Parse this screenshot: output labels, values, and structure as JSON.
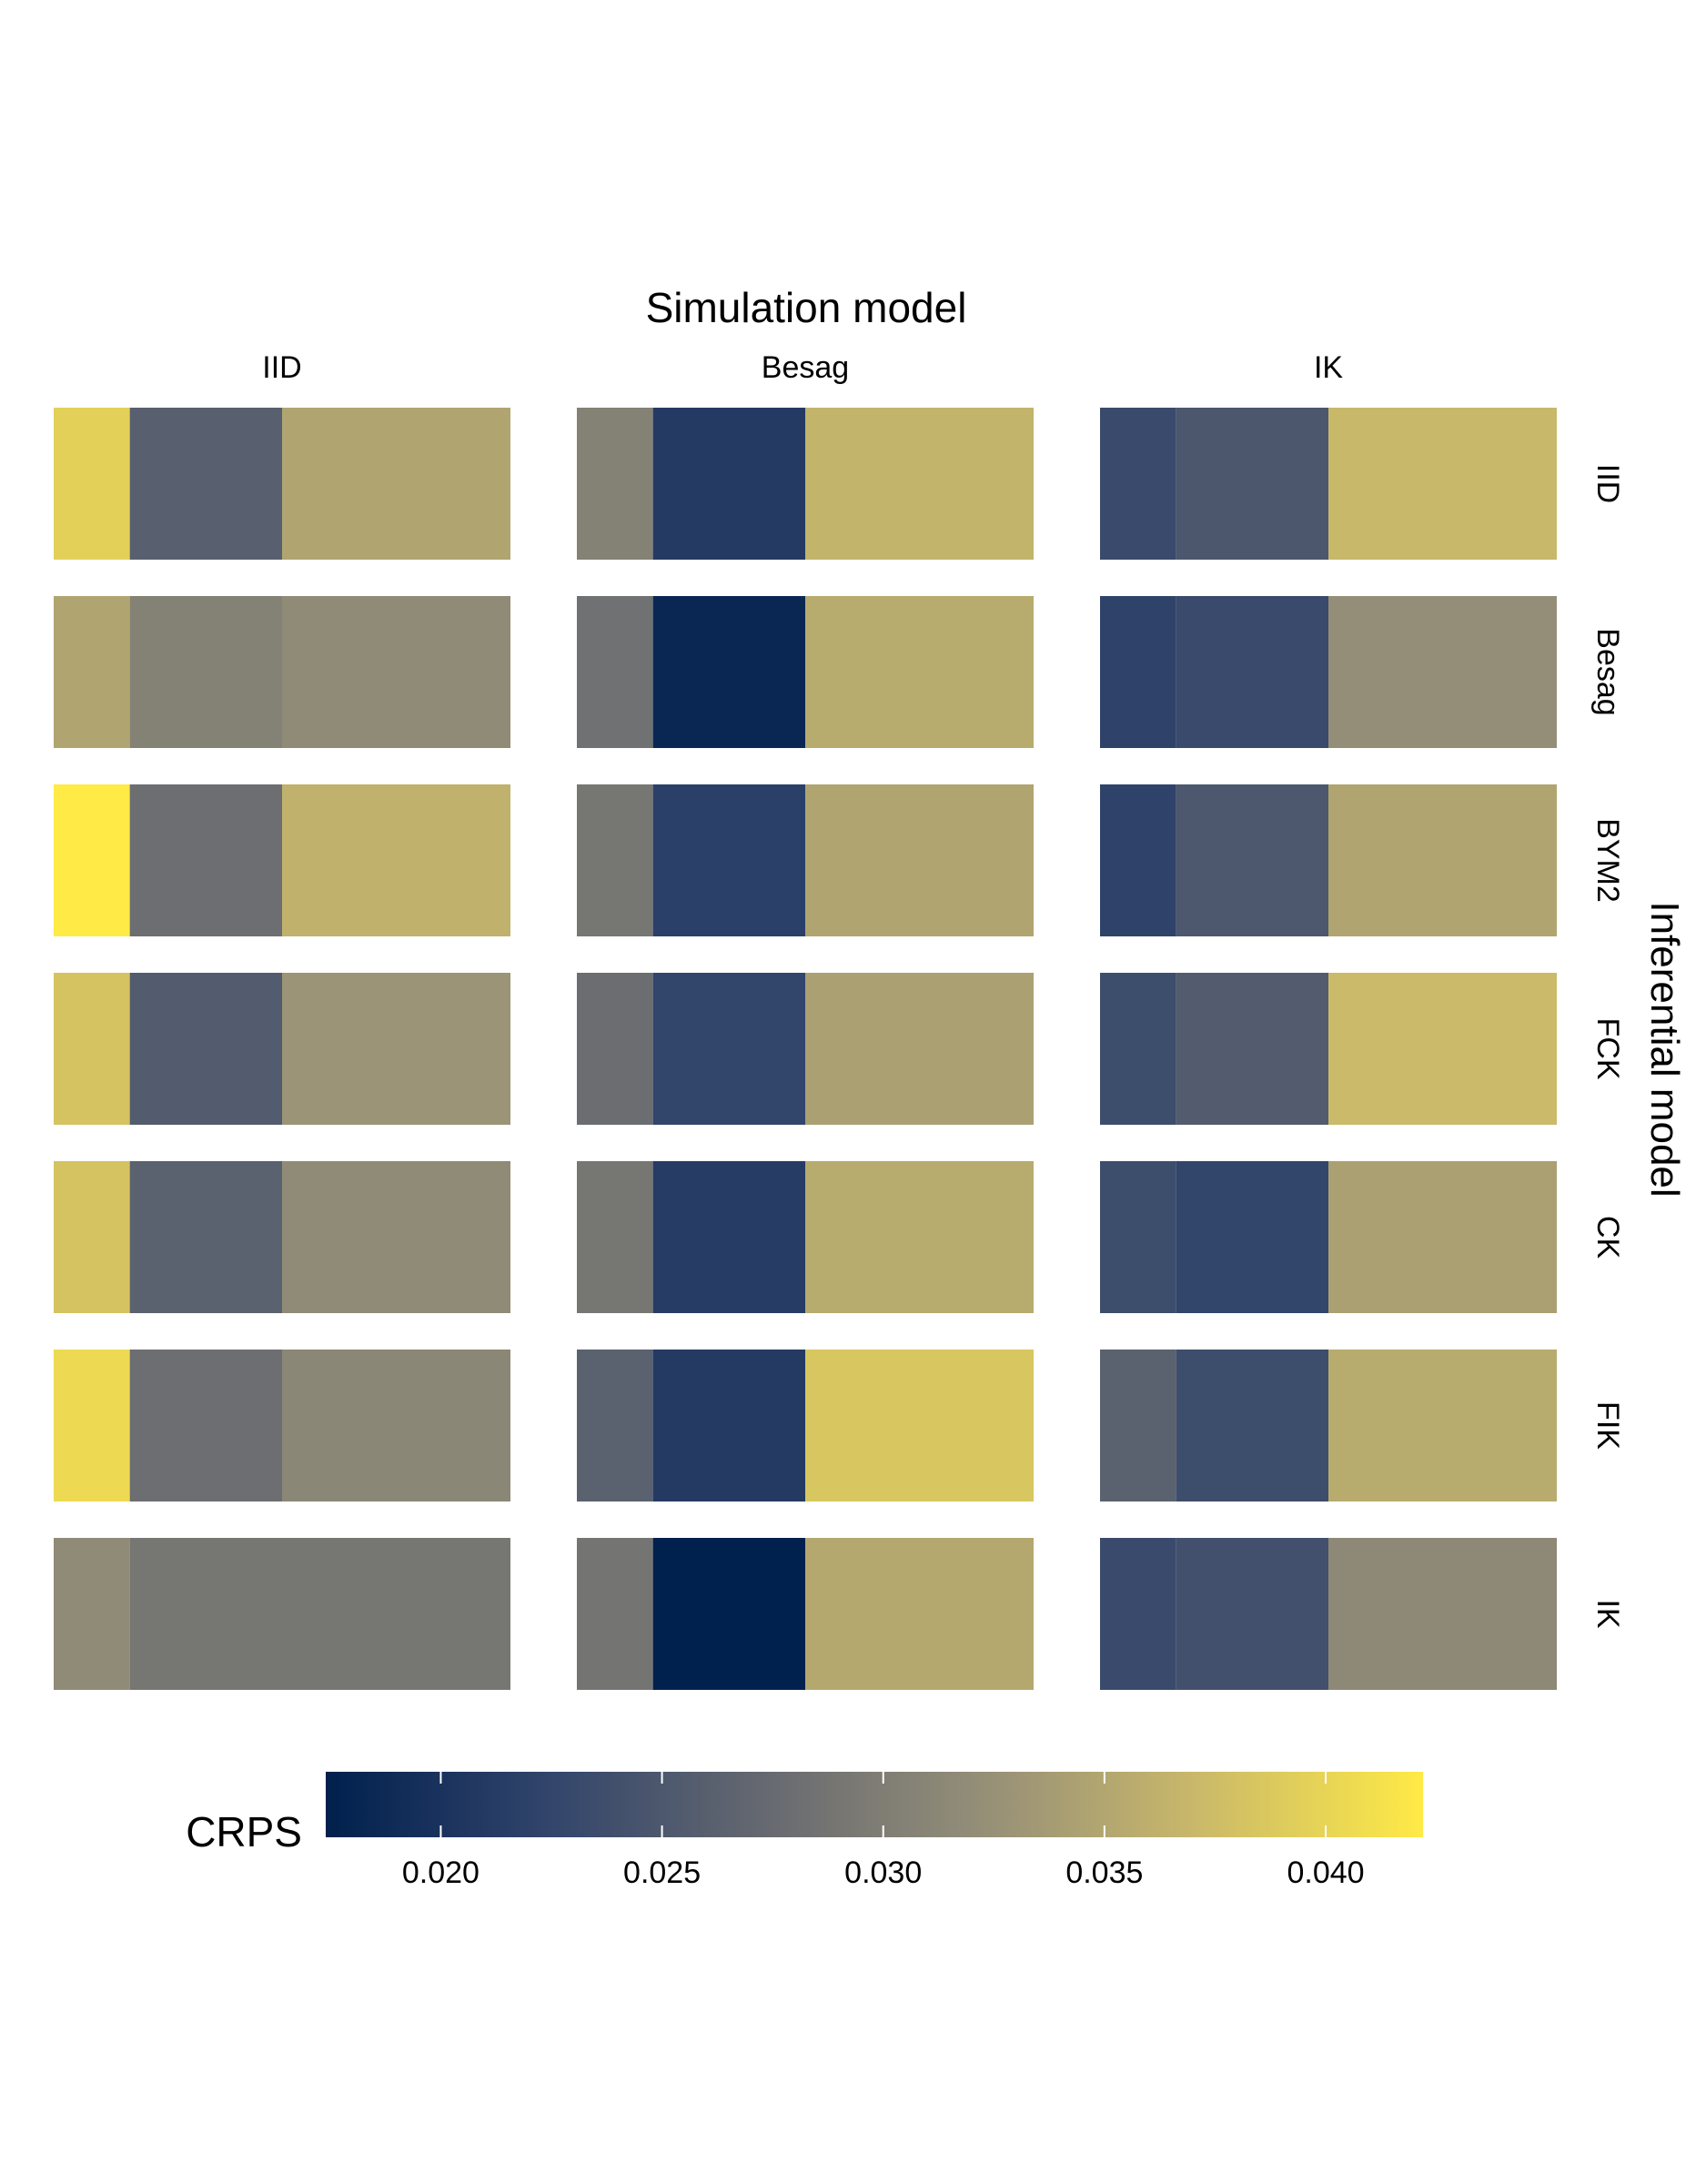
{
  "chart_data": {
    "type": "heatmap",
    "title": "Simulation model",
    "ylabel": "Inferential model",
    "column_facets": [
      "IID",
      "Besag",
      "IK"
    ],
    "row_facets": [
      "IID",
      "Besag",
      "BYM2",
      "FCK",
      "CK",
      "FIK",
      "IK"
    ],
    "cells_per_panel": 3,
    "cell_width_ratio": [
      1,
      2,
      3
    ],
    "legend": {
      "title": "CRPS",
      "placement": "bottom",
      "min": 0.0174,
      "max": 0.0422,
      "ticks": [
        0.02,
        0.025,
        0.03,
        0.035,
        0.04
      ],
      "tick_labels": [
        "0.020",
        "0.025",
        "0.030",
        "0.035",
        "0.040"
      ],
      "palette": [
        "#00204D",
        "#31446B",
        "#666970",
        "#958F78",
        "#CBBA69",
        "#FFEA46"
      ]
    },
    "values": [
      [
        [
          0.0395,
          0.026,
          0.0348
        ],
        [
          0.0305,
          0.021,
          0.0365
        ],
        [
          0.0232,
          0.0249,
          0.037
        ]
      ],
      [
        [
          0.0348,
          0.0305,
          0.0318
        ],
        [
          0.0283,
          0.0184,
          0.0355
        ],
        [
          0.0222,
          0.0232,
          0.0322
        ]
      ],
      [
        [
          0.0422,
          0.028,
          0.0362
        ],
        [
          0.029,
          0.0218,
          0.0348
        ],
        [
          0.0222,
          0.025,
          0.0348
        ]
      ],
      [
        [
          0.0382,
          0.0255,
          0.0328
        ],
        [
          0.0278,
          0.0225,
          0.0342
        ],
        [
          0.0235,
          0.0255,
          0.0372
        ]
      ],
      [
        [
          0.0382,
          0.0262,
          0.0318
        ],
        [
          0.029,
          0.0212,
          0.0355
        ],
        [
          0.0235,
          0.0225,
          0.0342
        ]
      ],
      [
        [
          0.0405,
          0.028,
          0.0312
        ],
        [
          0.0262,
          0.021,
          0.0385
        ],
        [
          0.0262,
          0.0235,
          0.0355
        ]
      ],
      [
        [
          0.0318,
          0.029,
          0.029
        ],
        [
          0.0288,
          0.0174,
          0.0352
        ],
        [
          0.0232,
          0.024,
          0.0315
        ]
      ]
    ]
  }
}
